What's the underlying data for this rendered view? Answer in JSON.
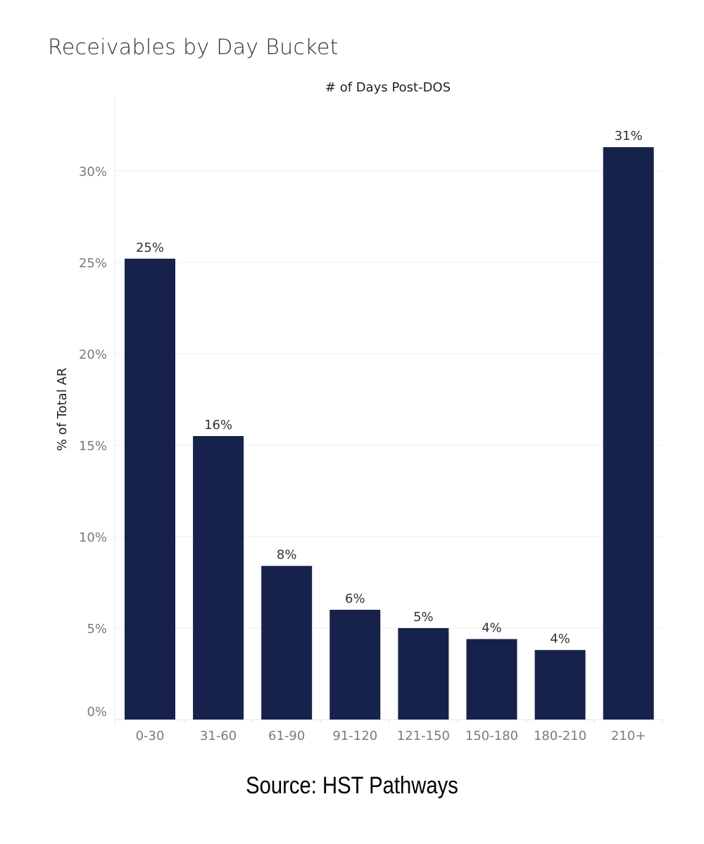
{
  "chart_data": {
    "type": "bar",
    "title": "Receivables by Day Bucket",
    "xlabel": "# of Days Post-DOS",
    "ylabel": "% of Total AR",
    "categories": [
      "0-30",
      "31-60",
      "61-90",
      "91-120",
      "121-150",
      "150-180",
      "180-210",
      "210+"
    ],
    "values": [
      25.2,
      15.5,
      8.4,
      6.0,
      5.0,
      4.4,
      3.8,
      31.3
    ],
    "data_labels": [
      "25%",
      "16%",
      "8%",
      "6%",
      "5%",
      "4%",
      "4%",
      "31%"
    ],
    "yticks": [
      0,
      5,
      10,
      15,
      20,
      25,
      30
    ],
    "ytick_labels": [
      "0%",
      "5%",
      "10%",
      "15%",
      "20%",
      "25%",
      "30%"
    ],
    "ylim": [
      0,
      34
    ],
    "grid": true,
    "legend": "none",
    "bar_color": "#16224b",
    "gridline_color": "#ececec"
  },
  "source": "Source: HST Pathways"
}
